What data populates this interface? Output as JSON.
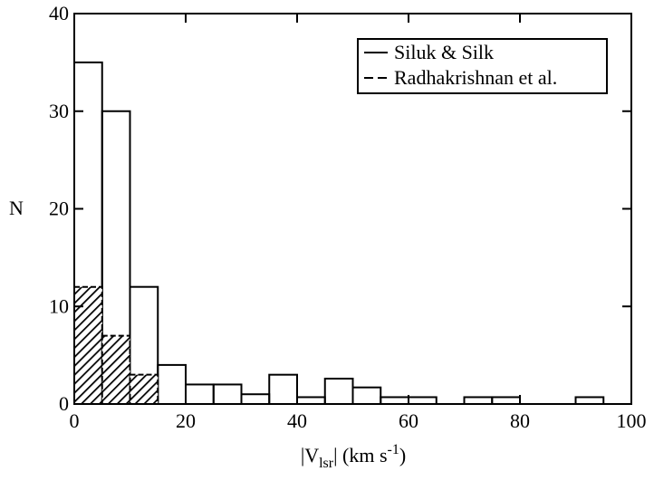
{
  "chart_data": {
    "type": "histogram",
    "xlabel": [
      "|V",
      "lsr",
      "| (km s",
      "-1",
      ")"
    ],
    "ylabel": "N",
    "xlim": [
      0,
      100
    ],
    "xticks": [
      0,
      20,
      40,
      60,
      80,
      100
    ],
    "ylim": [
      0,
      40
    ],
    "yticks": [
      0,
      10,
      20,
      30,
      40
    ],
    "legend": "upper right",
    "series": [
      {
        "name": "Siluk & Silk",
        "color": "#000000",
        "linestyle": "solid",
        "hatch": false,
        "bins": [
          0,
          5,
          10,
          15,
          20,
          25,
          30,
          35,
          40,
          45,
          50,
          55,
          60,
          65,
          70,
          75,
          80,
          85,
          90,
          95,
          100
        ],
        "values": [
          35,
          30,
          12,
          4,
          2,
          2,
          1,
          3,
          0.7,
          2.6,
          1.7,
          0.7,
          0.7,
          0,
          0.7,
          0.7,
          0,
          0,
          0.7,
          0
        ]
      },
      {
        "name": "Radhakrishnan et al.",
        "color": "#000000",
        "linestyle": "dashed",
        "hatch": true,
        "bins": [
          0,
          5,
          10,
          15
        ],
        "values": [
          12,
          7,
          3
        ]
      }
    ]
  }
}
